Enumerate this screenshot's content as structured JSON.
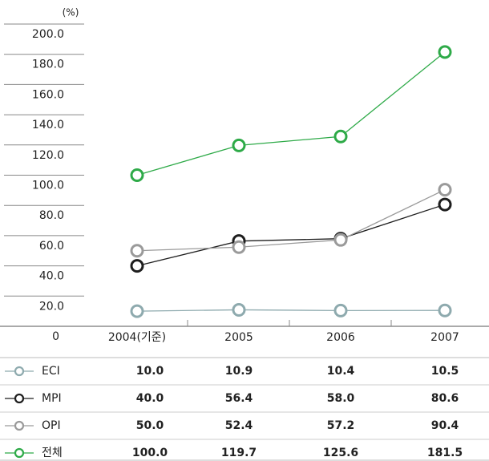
{
  "chart_data": {
    "type": "line",
    "y_label": "(%)",
    "categories": [
      "2004(기준)",
      "2005",
      "2006",
      "2007"
    ],
    "ylim": [
      0,
      200
    ],
    "yticks": [
      0,
      {
        "value": 20,
        "label": "20.0"
      },
      {
        "value": 40,
        "label": "40.0"
      },
      {
        "value": 60,
        "label": "60.0"
      },
      {
        "value": 80,
        "label": "80.0"
      },
      {
        "value": 100,
        "label": "100.0"
      },
      {
        "value": 120,
        "label": "120.0"
      },
      {
        "value": 140,
        "label": "140.0"
      },
      {
        "value": 160,
        "label": "160.0"
      },
      {
        "value": 180,
        "label": "180.0"
      },
      {
        "value": 200,
        "label": "200.0"
      }
    ],
    "grid": true,
    "series": [
      {
        "name": "ECI",
        "color": "#8eaaae",
        "values": [
          10.0,
          10.9,
          10.4,
          10.5
        ],
        "value_labels": [
          "10.0",
          "10.9",
          "10.4",
          "10.5"
        ]
      },
      {
        "name": "MPI",
        "color": "#1e1e1e",
        "values": [
          40.0,
          56.4,
          58.0,
          80.6
        ],
        "value_labels": [
          "40.0",
          "56.4",
          "58.0",
          "80.6"
        ]
      },
      {
        "name": "OPI",
        "color": "#9a9a9a",
        "values": [
          50.0,
          52.4,
          57.2,
          90.4
        ],
        "value_labels": [
          "50.0",
          "52.4",
          "57.2",
          "90.4"
        ]
      },
      {
        "name": "전체",
        "color": "#2eaa48",
        "values": [
          100.0,
          119.7,
          125.6,
          181.5
        ],
        "value_labels": [
          "100.0",
          "119.7",
          "125.6",
          "181.5"
        ]
      }
    ]
  }
}
